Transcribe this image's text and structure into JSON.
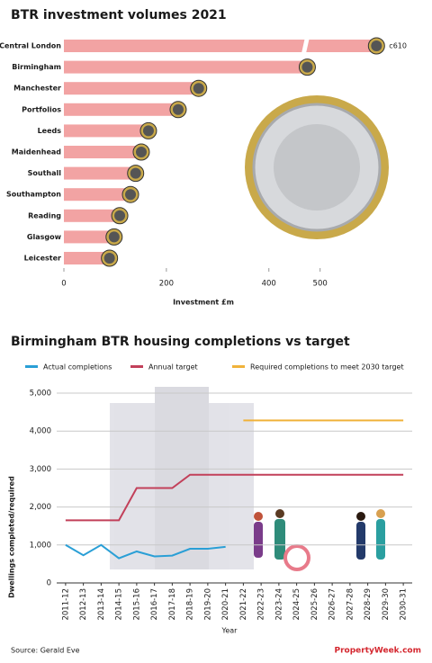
{
  "chart_data": [
    {
      "type": "hbar",
      "title": "BTR investment volumes 2021",
      "categories": [
        "Central London",
        "Birmingham",
        "Manchester",
        "Portfolios",
        "Leeds",
        "Maidenhead",
        "Southall",
        "Southampton",
        "Reading",
        "Glasgow",
        "Leicester"
      ],
      "values": [
        610,
        475,
        263,
        223,
        165,
        151,
        140,
        130,
        109,
        98,
        89
      ],
      "value_labels": [
        "c610",
        null,
        null,
        null,
        null,
        null,
        null,
        null,
        null,
        null,
        null
      ],
      "color": "#f2a3a3",
      "xlabel": "Investment £m",
      "xlim": [
        0,
        620
      ],
      "xticks": [
        0,
        200,
        400,
        500
      ],
      "grid": false
    },
    {
      "type": "line",
      "title": "Birmingham BTR housing completions vs target",
      "categories": [
        "2011-12",
        "2012-13",
        "2013-14",
        "2014-15",
        "2015-16",
        "2016-17",
        "2017-18",
        "2018-19",
        "2019-20",
        "2020-21",
        "2021-22",
        "2022-23",
        "2023-24",
        "2024-25",
        "2025-26",
        "2026-27",
        "2027-28",
        "2028-29",
        "2029-30",
        "2030-31"
      ],
      "series": [
        {
          "name": "Actual completions",
          "color": "#2a9fd6",
          "values": [
            1000,
            730,
            1000,
            650,
            830,
            700,
            720,
            900,
            900,
            950,
            null,
            null,
            null,
            null,
            null,
            null,
            null,
            null,
            null,
            null
          ]
        },
        {
          "name": "Annual target",
          "color": "#c2405a",
          "values": [
            1650,
            1650,
            1650,
            1650,
            2500,
            2500,
            2500,
            2850,
            2850,
            2850,
            2850,
            2850,
            2850,
            2850,
            2850,
            2850,
            2850,
            2850,
            2850,
            2850
          ]
        },
        {
          "name": "Required completions to meet 2030 target",
          "color": "#f0b23a",
          "values": [
            null,
            null,
            null,
            null,
            null,
            null,
            null,
            null,
            null,
            null,
            4280,
            4280,
            4280,
            4280,
            4280,
            4280,
            4280,
            4280,
            4280,
            4280
          ]
        }
      ],
      "xlabel": "Year",
      "ylabel": "Dwellings completed/required",
      "ylim": [
        0,
        5000
      ],
      "yticks": [
        0,
        {
          "value": 1000,
          "label": "1,000"
        },
        {
          "value": 2000,
          "label": "2,000"
        },
        {
          "value": 3000,
          "label": "3,000"
        },
        {
          "value": 4000,
          "label": "4,000"
        },
        {
          "value": 5000,
          "label": "5,000"
        }
      ],
      "grid": true
    }
  ],
  "source": "Source: Gerald Eve",
  "logo": "PropertyWeek.com"
}
